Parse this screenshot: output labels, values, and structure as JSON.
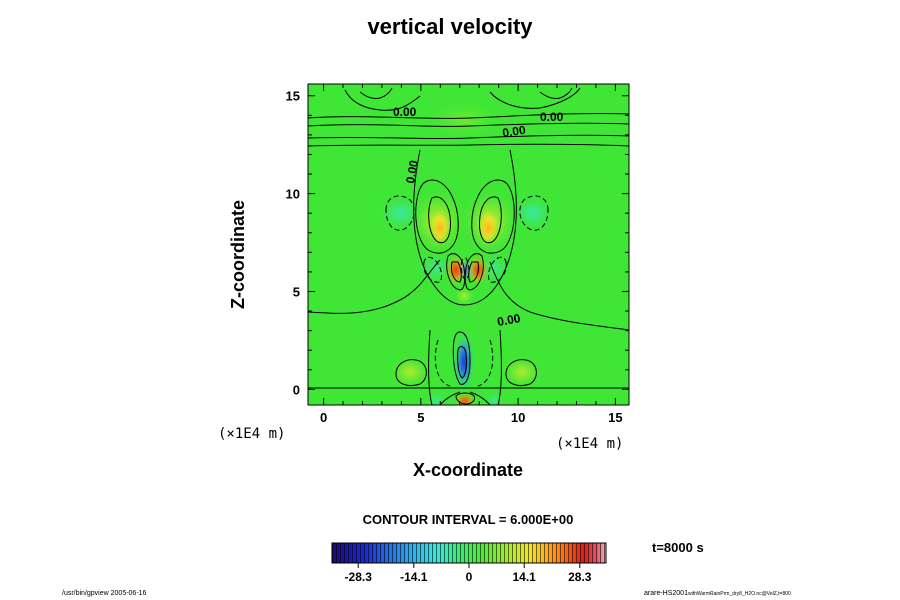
{
  "chart_data": {
    "type": "contour",
    "title": "vertical velocity",
    "xlabel": "X-coordinate",
    "ylabel": "Z-coordinate",
    "x_unit_label": "(×1E4 m)",
    "z_unit_label": "(×1E4 m)",
    "xlim": [
      -0.8,
      15.7
    ],
    "ylim": [
      -0.8,
      15.6
    ],
    "x_ticks": [
      0,
      5,
      10,
      15
    ],
    "y_ticks": [
      0,
      5,
      10,
      15
    ],
    "contour_labels": [
      "0.00",
      "0.00",
      "0.00",
      "0.00",
      "0.00"
    ],
    "contour_interval_text": "CONTOUR INTERVAL = 6.000E+00",
    "time_text": "t=8000 s",
    "colorbar": {
      "min": -35,
      "max": 35,
      "tick_values": [
        -28.3,
        -14.1,
        0,
        14.1,
        28.3
      ],
      "tick_labels": [
        "-28.3",
        "-14.1",
        "0",
        "14.1",
        "28.3"
      ]
    },
    "footer_left": "/usr/bin/gpview 2005-06-16",
    "footer_right_main": "arare-HS2001",
    "footer_right_small": "withWarmRainPrm_dry8_H2O.nc@VelZ,t=800"
  }
}
